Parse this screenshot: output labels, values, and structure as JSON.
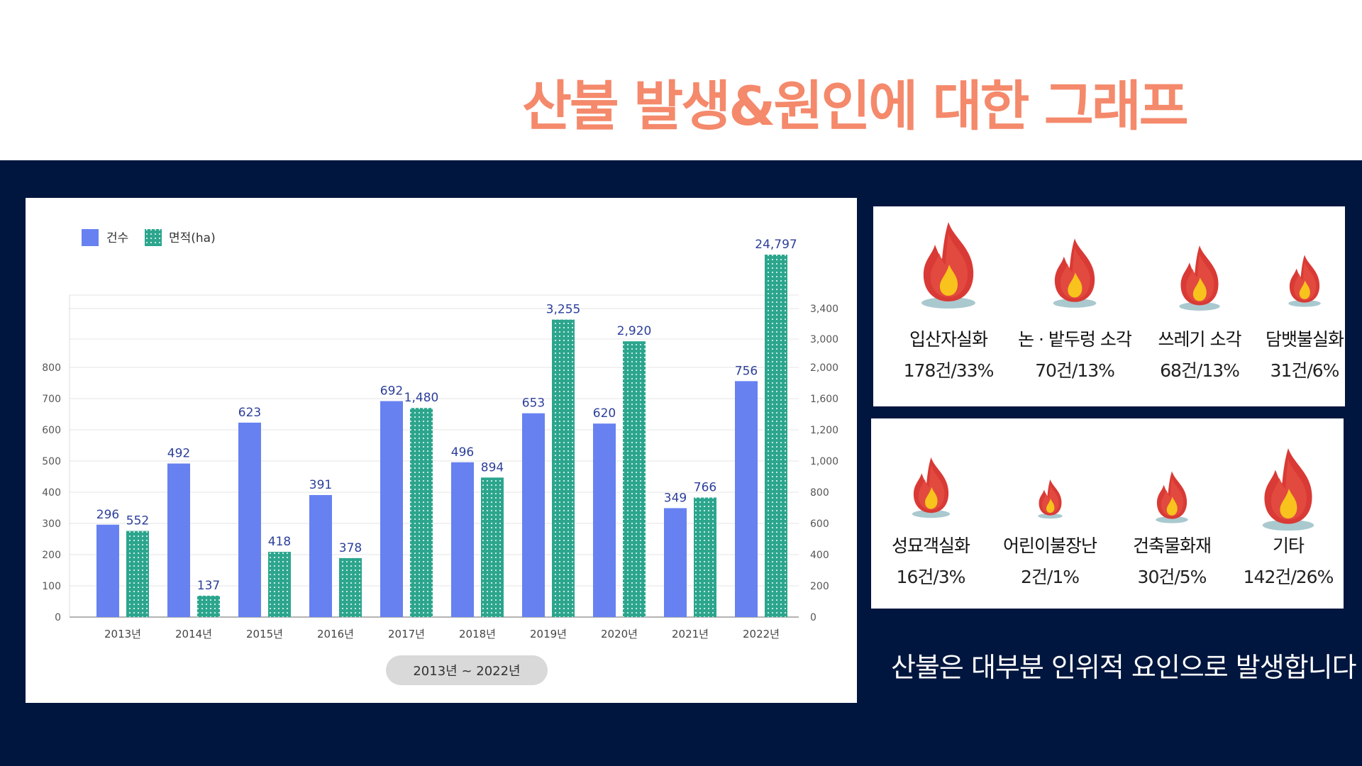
{
  "page": {
    "title": "산불 발생&원인에 대한 그래프",
    "footnote": "산불은 대부분 인위적 요인으로 발생합니다"
  },
  "chart_data": {
    "type": "bar",
    "categories": [
      "2013년",
      "2014년",
      "2015년",
      "2016년",
      "2017년",
      "2018년",
      "2019년",
      "2020년",
      "2021년",
      "2022년"
    ],
    "series": [
      {
        "name": "건수",
        "axis": "left",
        "color": "#6781f1",
        "values": [
          296,
          492,
          623,
          391,
          692,
          496,
          653,
          620,
          349,
          756
        ],
        "labels": [
          "296",
          "492",
          "623",
          "391",
          "692",
          "496",
          "653",
          "620",
          "349",
          "756"
        ]
      },
      {
        "name": "면적(ha)",
        "axis": "right",
        "color": "#2ca58d",
        "pattern": "dotted",
        "values": [
          552,
          137,
          418,
          378,
          1480,
          894,
          3255,
          2920,
          766,
          24797
        ],
        "labels": [
          "552",
          "137",
          "418",
          "378",
          "1,480",
          "894",
          "3,255",
          "2,920",
          "766",
          "24,797"
        ]
      }
    ],
    "left_axis": {
      "ticks": [
        "0",
        "100",
        "200",
        "300",
        "400",
        "500",
        "600",
        "700",
        "800"
      ]
    },
    "right_axis": {
      "ticks": [
        "0",
        "200",
        "400",
        "600",
        "800",
        "1,000",
        "1,200",
        "1,600",
        "2,000",
        "3,000",
        "3,400"
      ],
      "tick_values": [
        0,
        200,
        400,
        600,
        800,
        1000,
        1200,
        1600,
        2000,
        3000,
        3400
      ],
      "scale": "broken/non-linear"
    },
    "legend": {
      "position": "top-left"
    },
    "period_label": "2013년 ~ 2022년",
    "grid": true
  },
  "causes": [
    {
      "name": "입산자실화",
      "stat": "178건/33%",
      "size": 1.0
    },
    {
      "name": "논 · 밭두렁 소각",
      "stat": "70건/13%",
      "size": 0.8
    },
    {
      "name": "쓰레기 소각",
      "stat": "68건/13%",
      "size": 0.75
    },
    {
      "name": "담뱃불실화",
      "stat": "31건/6%",
      "size": 0.6
    },
    {
      "name": "성묘객실화",
      "stat": "16건/3%",
      "size": 0.7
    },
    {
      "name": "어린이불장난",
      "stat": "2건/1%",
      "size": 0.45
    },
    {
      "name": "건축물화재",
      "stat": "30건/5%",
      "size": 0.6
    },
    {
      "name": "기타",
      "stat": "142건/26%",
      "size": 0.95
    }
  ]
}
